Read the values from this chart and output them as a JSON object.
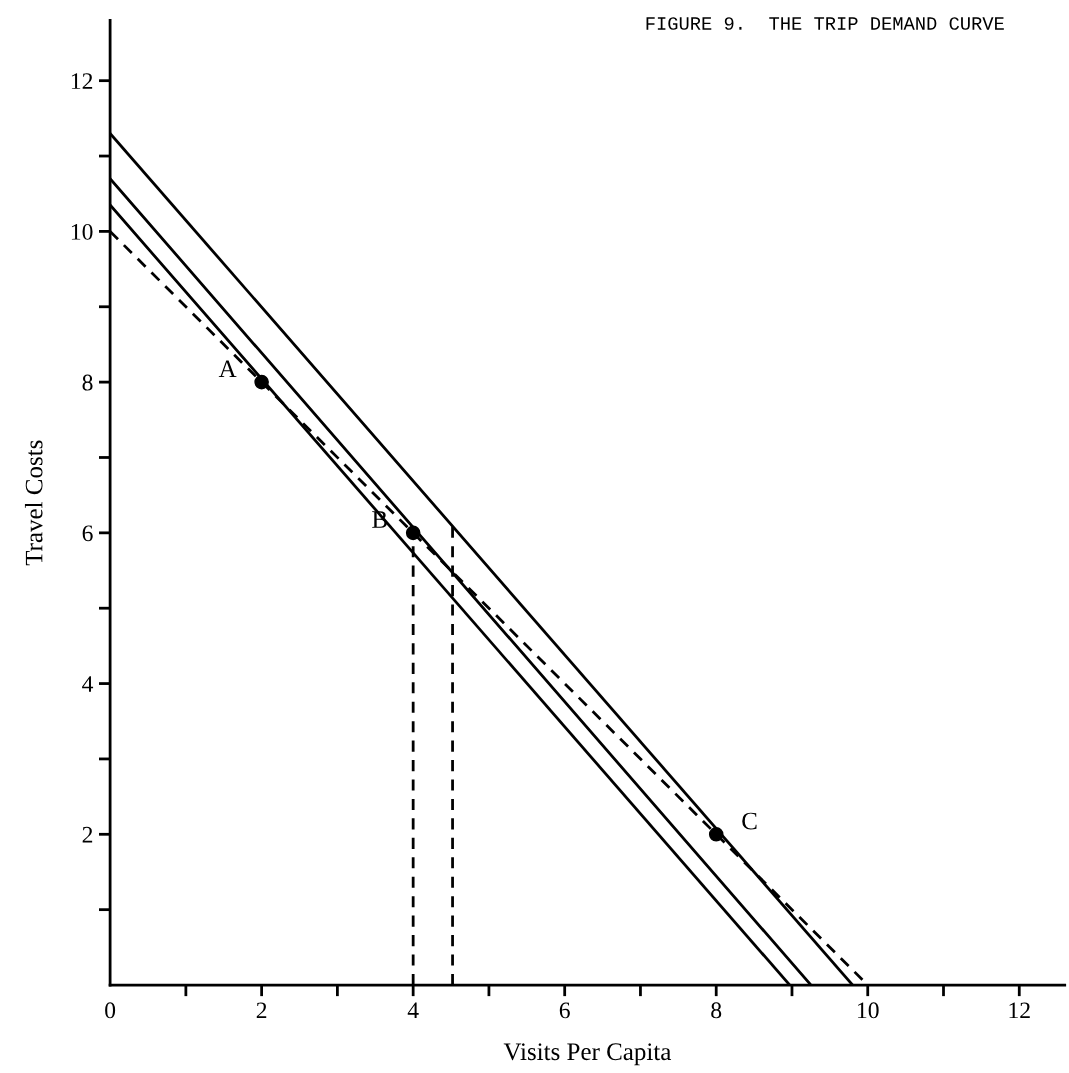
{
  "chart_data": {
    "type": "line",
    "title": "FIGURE 9.  THE TRIP DEMAND CURVE",
    "xlabel": "Visits Per Capita",
    "ylabel": "Travel Costs",
    "series": [
      {
        "color": "#000000",
        "x": [
          0,
          9.8
        ],
        "values": [
          11.3,
          0
        ],
        "line_style": "solid",
        "marker": "none"
      },
      {
        "color": "#000000",
        "x": [
          0,
          9.25
        ],
        "values": [
          10.7,
          0
        ],
        "line_style": "solid",
        "marker": "none"
      },
      {
        "color": "#000000",
        "x": [
          0,
          8.97
        ],
        "values": [
          10.35,
          0
        ],
        "line_style": "solid",
        "marker": "none"
      },
      {
        "color": "#000000",
        "x": [
          0,
          10
        ],
        "values": [
          10,
          0
        ],
        "line_style": "dashed",
        "marker": "none"
      },
      {
        "color": "#000000",
        "x": [
          4,
          4
        ],
        "values": [
          0,
          6
        ],
        "line_style": "dashed",
        "marker": "none"
      },
      {
        "color": "#000000",
        "x": [
          4.52,
          4.52
        ],
        "values": [
          0,
          6.1
        ],
        "line_style": "dashed",
        "marker": "none"
      },
      {
        "type": "scatter",
        "color": "#000000",
        "x": [
          2,
          4,
          8
        ],
        "values": [
          8,
          6,
          2
        ],
        "marker": "circle"
      }
    ],
    "annotations": [
      {
        "text": "A",
        "x": 2,
        "y": 8
      },
      {
        "text": "B",
        "x": 4,
        "y": 6
      },
      {
        "text": "C",
        "x": 8,
        "y": 2
      }
    ],
    "xlim": [
      0,
      12.6
    ],
    "ylim": [
      0,
      12.8
    ],
    "xticks": [
      0,
      {
        "value": 1,
        "label": null
      },
      2,
      {
        "value": 3,
        "label": null
      },
      4,
      {
        "value": 5,
        "label": null
      },
      6,
      {
        "value": 7,
        "label": null
      },
      8,
      {
        "value": 9,
        "label": null
      },
      10,
      {
        "value": 11,
        "label": null
      },
      12
    ],
    "yticks": [
      {
        "value": 1,
        "label": null
      },
      2,
      {
        "value": 3,
        "label": null
      },
      4,
      {
        "value": 5,
        "label": null
      },
      6,
      {
        "value": 7,
        "label": null
      },
      8,
      {
        "value": 9,
        "label": null
      },
      10,
      {
        "value": 11,
        "label": null
      },
      12
    ],
    "grid": false,
    "legend": false
  }
}
